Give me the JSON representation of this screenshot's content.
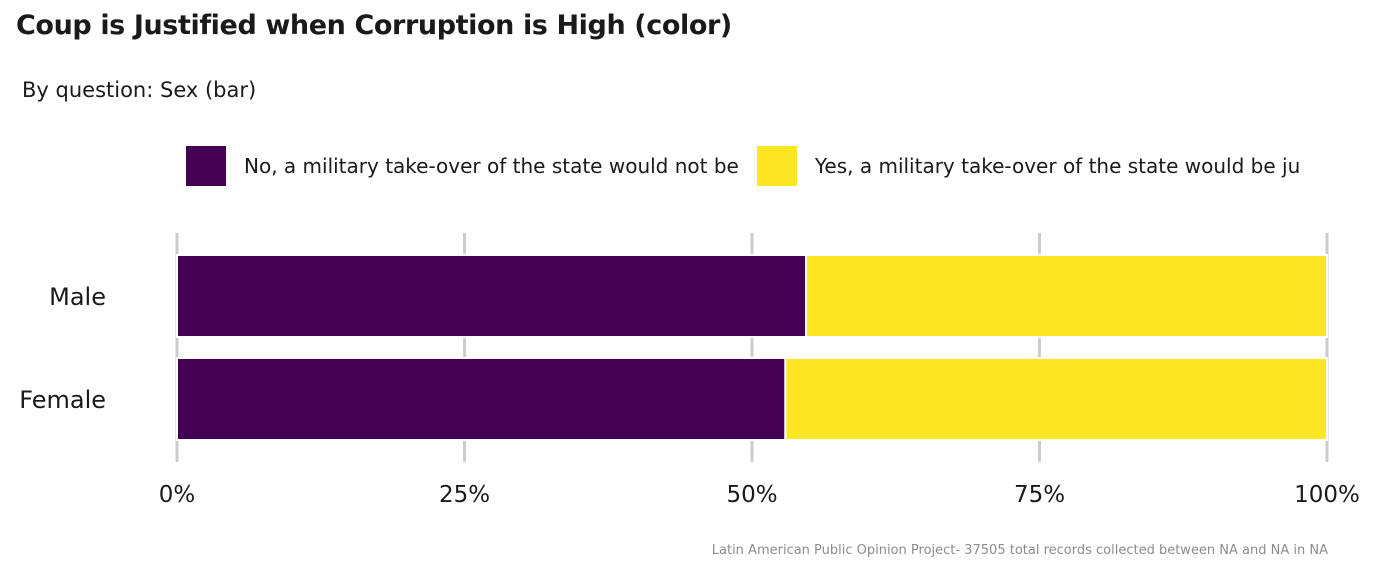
{
  "title": "Coup is Justified when Corruption is High (color)",
  "subtitle": "By question: Sex (bar)",
  "caption": "Latin American Public Opinion Project- 37505 total records collected between NA and NA in  NA",
  "colors": {
    "no": "#440154",
    "yes": "#FDE725",
    "grid": "#cccccc",
    "text": "#1a1a1a"
  },
  "chart_data": {
    "type": "bar",
    "orientation": "horizontal",
    "stacked": true,
    "categories": [
      "Male",
      "Female"
    ],
    "series": [
      {
        "name": "No, a military take-over of the state would not be",
        "color": "#440154",
        "values": [
          0.547,
          0.529
        ]
      },
      {
        "name": "Yes, a military take-over of the state would be ju",
        "color": "#FDE725",
        "values": [
          0.453,
          0.471
        ]
      }
    ],
    "xlim": [
      0,
      1
    ],
    "xticks": [
      0,
      0.25,
      0.5,
      0.75,
      1
    ],
    "xtick_labels": [
      "0%",
      "25%",
      "50%",
      "75%",
      "100%"
    ],
    "grid": true,
    "legend_position": "top"
  }
}
